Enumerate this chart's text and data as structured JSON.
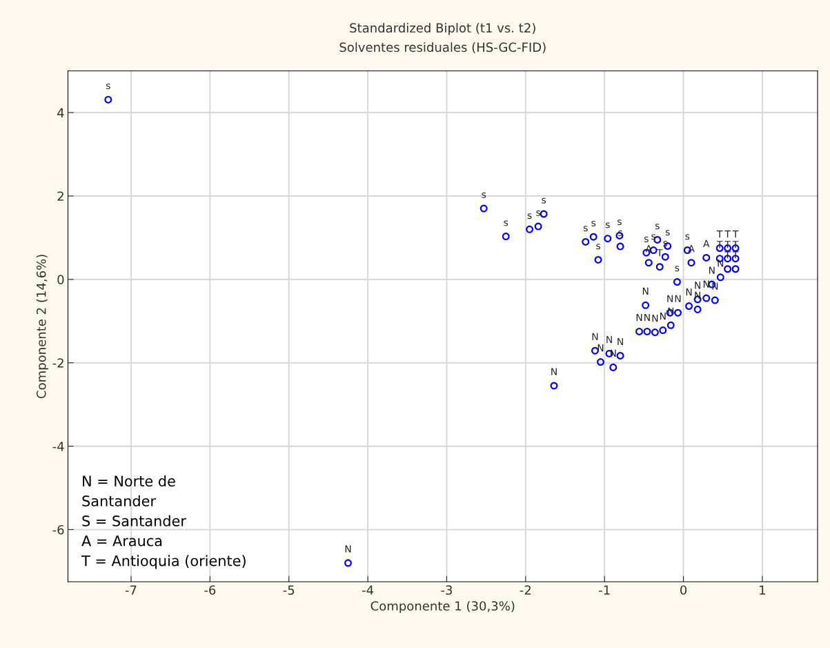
{
  "chart_data": {
    "type": "scatter",
    "title": "Standardized Biplot (t1 vs. t2)",
    "subtitle": "Solventes residuales (HS-GC-FID)",
    "xlabel": "Componente 1 (30,3%)",
    "ylabel": "Componente 2 (14,6%)",
    "xlim": [
      -7.8,
      1.7
    ],
    "ylim": [
      -7.25,
      5.0
    ],
    "xticks": [
      -7,
      -6,
      -5,
      -4,
      -3,
      -2,
      -1,
      0,
      1
    ],
    "yticks": [
      -6,
      -4,
      -2,
      0,
      2,
      4
    ],
    "grid": true,
    "legend": false,
    "marker": "circle",
    "annotations": [
      "N = Norte de\nSantander\nS = Santander\nA = Arauca\nT = Antioquia (oriente)"
    ],
    "series": [
      {
        "name": "s",
        "color": "#0000ff",
        "x": [
          -7.29,
          -2.53,
          -2.25,
          -1.95,
          -1.84,
          -1.77,
          -1.24,
          -1.14,
          -0.96,
          -1.08,
          -0.81,
          -0.8,
          -0.47,
          -0.33,
          -0.38,
          -0.2,
          -0.23,
          0.05,
          -0.08
        ],
        "values": [
          4.31,
          1.7,
          1.03,
          1.2,
          1.27,
          1.57,
          0.9,
          1.02,
          0.98,
          0.47,
          1.05,
          0.79,
          0.64,
          0.95,
          0.7,
          0.8,
          0.54,
          0.7,
          -0.06
        ]
      },
      {
        "name": "A",
        "color": "#0000ff",
        "x": [
          -0.44,
          0.1,
          0.29
        ],
        "values": [
          0.4,
          0.4,
          0.52
        ]
      },
      {
        "name": "T",
        "color": "#0000ff",
        "x": [
          -0.3,
          0.56,
          0.66,
          0.46,
          0.56,
          0.66,
          0.46,
          0.56,
          0.66
        ],
        "values": [
          0.3,
          0.25,
          0.25,
          0.5,
          0.5,
          0.5,
          0.75,
          0.75,
          0.75
        ]
      },
      {
        "name": "N",
        "color": "#0000ff",
        "x": [
          -4.25,
          -1.64,
          -1.12,
          -1.05,
          -0.94,
          -0.89,
          -0.8,
          -0.48,
          -0.56,
          -0.46,
          -0.36,
          -0.26,
          -0.16,
          -0.17,
          -0.07,
          0.07,
          0.18,
          0.18,
          0.29,
          0.4,
          0.36,
          0.47
        ],
        "values": [
          -6.8,
          -2.55,
          -1.71,
          -1.98,
          -1.78,
          -2.11,
          -1.83,
          -0.62,
          -1.25,
          -1.25,
          -1.27,
          -1.22,
          -1.1,
          -0.8,
          -0.8,
          -0.64,
          -0.72,
          -0.48,
          -0.45,
          -0.5,
          -0.12,
          0.05
        ]
      }
    ]
  }
}
